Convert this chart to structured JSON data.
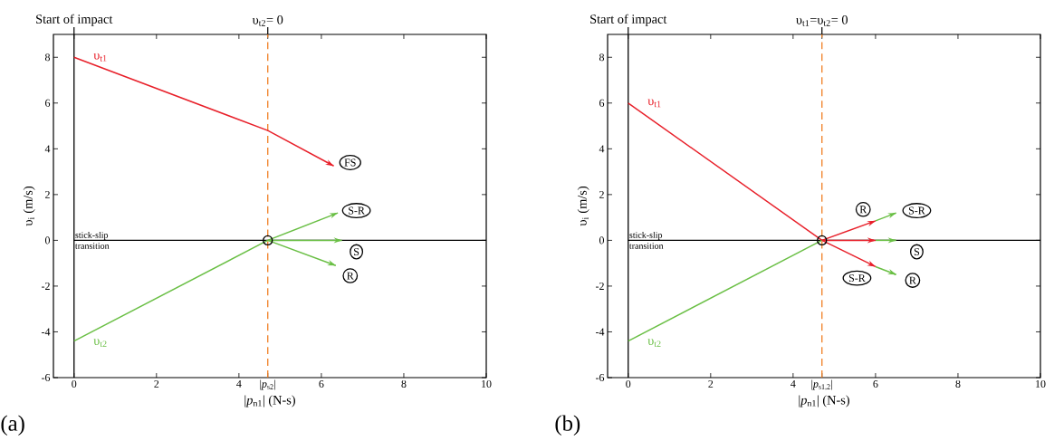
{
  "chart_data": [
    {
      "type": "line",
      "xlabel": "|*p*$_{n1}$| (N-s)",
      "ylabel": "υ$_{i}$ (m/s)",
      "xlim": [
        -0.5,
        10
      ],
      "ylim": [
        -6,
        9
      ],
      "xticks": [
        0,
        2,
        4,
        {
          "value": 4.7,
          "label": "|*p*$_{s2}$|"
        },
        6,
        8,
        10
      ],
      "yticks": [
        -6,
        -4,
        -2,
        0,
        2,
        4,
        6,
        8
      ],
      "series": [
        {
          "name": "υ$_{t1}$",
          "color": "#e8202a",
          "x": [
            0,
            4.7,
            6.3
          ],
          "values": [
            8,
            4.8,
            3.25
          ]
        },
        {
          "name": "υ$_{t2}$",
          "color": "#6abf45",
          "x": [
            0,
            4.7
          ],
          "values": [
            -4.4,
            0
          ]
        },
        {
          "color": "#6abf45",
          "x": [
            4.7,
            6.4
          ],
          "values": [
            0,
            1.2
          ]
        },
        {
          "color": "#6abf45",
          "x": [
            4.7,
            6.5
          ],
          "values": [
            0,
            0
          ]
        },
        {
          "color": "#6abf45",
          "x": [
            4.7,
            6.35
          ],
          "values": [
            0,
            -1.1
          ]
        },
        {
          "type": "scatter",
          "marker": "circle",
          "color": "#000000",
          "x": [
            4.7
          ],
          "values": [
            0
          ]
        }
      ],
      "ref_lines": [
        {
          "axis": "x",
          "value": 0,
          "label": "Start of impact",
          "color": "#000000",
          "line_style": "solid"
        },
        {
          "axis": "x",
          "value": 4.7,
          "color": "#f07f23",
          "line_style": "dashed"
        },
        {
          "axis": "y",
          "value": 0,
          "label": "stick-slip transition",
          "color": "#000000",
          "line_style": "solid"
        }
      ],
      "annotations": [
        "υ$_{t2}$= 0",
        {
          "text": "FS",
          "x": 6.7,
          "y": 3.4
        },
        {
          "text": "S-R",
          "x": 6.85,
          "y": 1.3
        },
        {
          "text": "S",
          "x": 6.85,
          "y": -0.5
        },
        {
          "text": "R",
          "x": 6.7,
          "y": -1.55
        },
        "(a)"
      ],
      "grid": false
    },
    {
      "type": "line",
      "xlabel": "|*p*$_{n1}$| (N-s)",
      "ylabel": "υ$_{i}$ (m/s)",
      "xlim": [
        -0.5,
        10
      ],
      "ylim": [
        -6,
        9
      ],
      "xticks": [
        0,
        2,
        4,
        {
          "value": 4.7,
          "label": "|*p*$_{s1,2}$|"
        },
        6,
        8,
        10
      ],
      "yticks": [
        -6,
        -4,
        -2,
        0,
        2,
        4,
        6,
        8
      ],
      "series": [
        {
          "name": "υ$_{t1}$",
          "color": "#e8202a",
          "x": [
            0,
            4.7
          ],
          "values": [
            6,
            0
          ]
        },
        {
          "name": "υ$_{t2}$",
          "color": "#6abf45",
          "x": [
            0,
            4.7
          ],
          "values": [
            -4.4,
            0
          ]
        },
        {
          "color": "#6abf45",
          "x": [
            6.0,
            6.5
          ],
          "values": [
            0.85,
            1.2
          ]
        },
        {
          "color": "#6abf45",
          "x": [
            6.0,
            6.5
          ],
          "values": [
            0,
            0
          ]
        },
        {
          "color": "#6abf45",
          "x": [
            6.0,
            6.5
          ],
          "values": [
            -1.15,
            -1.5
          ]
        },
        {
          "color": "#e8202a",
          "x": [
            4.7,
            6.0
          ],
          "values": [
            0,
            0.85
          ]
        },
        {
          "color": "#e8202a",
          "x": [
            4.7,
            6.0
          ],
          "values": [
            0,
            0
          ]
        },
        {
          "color": "#e8202a",
          "x": [
            4.7,
            6.0
          ],
          "values": [
            0,
            -1.15
          ]
        },
        {
          "type": "scatter",
          "marker": "circle",
          "color": "#000000",
          "x": [
            4.7
          ],
          "values": [
            0
          ]
        }
      ],
      "ref_lines": [
        {
          "axis": "x",
          "value": 0,
          "label": "Start of impact",
          "color": "#000000",
          "line_style": "solid"
        },
        {
          "axis": "x",
          "value": 4.7,
          "color": "#f07f23",
          "line_style": "dashed"
        },
        {
          "axis": "y",
          "value": 0,
          "label": "stick-slip transition",
          "color": "#000000",
          "line_style": "solid"
        }
      ],
      "annotations": [
        "υ$_{t1}$=υ$_{t2}$= 0",
        {
          "text": "R",
          "x": 5.7,
          "y": 1.35
        },
        {
          "text": "S-R",
          "x": 7.0,
          "y": 1.3
        },
        {
          "text": "S",
          "x": 7.0,
          "y": -0.5
        },
        {
          "text": "S-R",
          "x": 5.55,
          "y": -1.65
        },
        {
          "text": "R",
          "x": 6.9,
          "y": -1.75
        },
        "(b)"
      ],
      "grid": false
    }
  ]
}
